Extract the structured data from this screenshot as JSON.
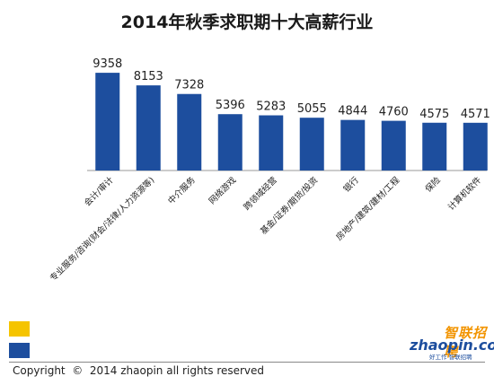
{
  "chart_data": {
    "type": "bar",
    "title": "2014年秋季求职期十大高薪行业",
    "categories": [
      "会计/审计",
      "专业服务/咨询(财会/法律/人力资源等)",
      "中介服务",
      "网络游戏",
      "跨领域经营",
      "基金/证券/期货/投资",
      "银行",
      "房地产/建筑/建材/工程",
      "保险",
      "计算机软件"
    ],
    "values": [
      9358,
      8153,
      7328,
      5396,
      5283,
      5055,
      4844,
      4760,
      4575,
      4571
    ],
    "data_labels": [
      "9358",
      "8153",
      "7328",
      "5396",
      "5283",
      "5055",
      "4844",
      "4760",
      "4575",
      "4571"
    ],
    "ylim": [
      0,
      11000
    ],
    "grid": false,
    "legend": "none",
    "xlabel": "",
    "ylabel": "",
    "bar_color": "#1d4e9e",
    "axis_color": "#999999"
  },
  "footer": {
    "copyright": "Copyright  ©  2014 zhaopin all rights reserved",
    "accent_colors": [
      "#f5c400",
      "#1d4e9e"
    ]
  },
  "logo": {
    "cn": "智联招聘",
    "en": "zhaopin.com",
    "tag": "好工作 智联招聘"
  }
}
